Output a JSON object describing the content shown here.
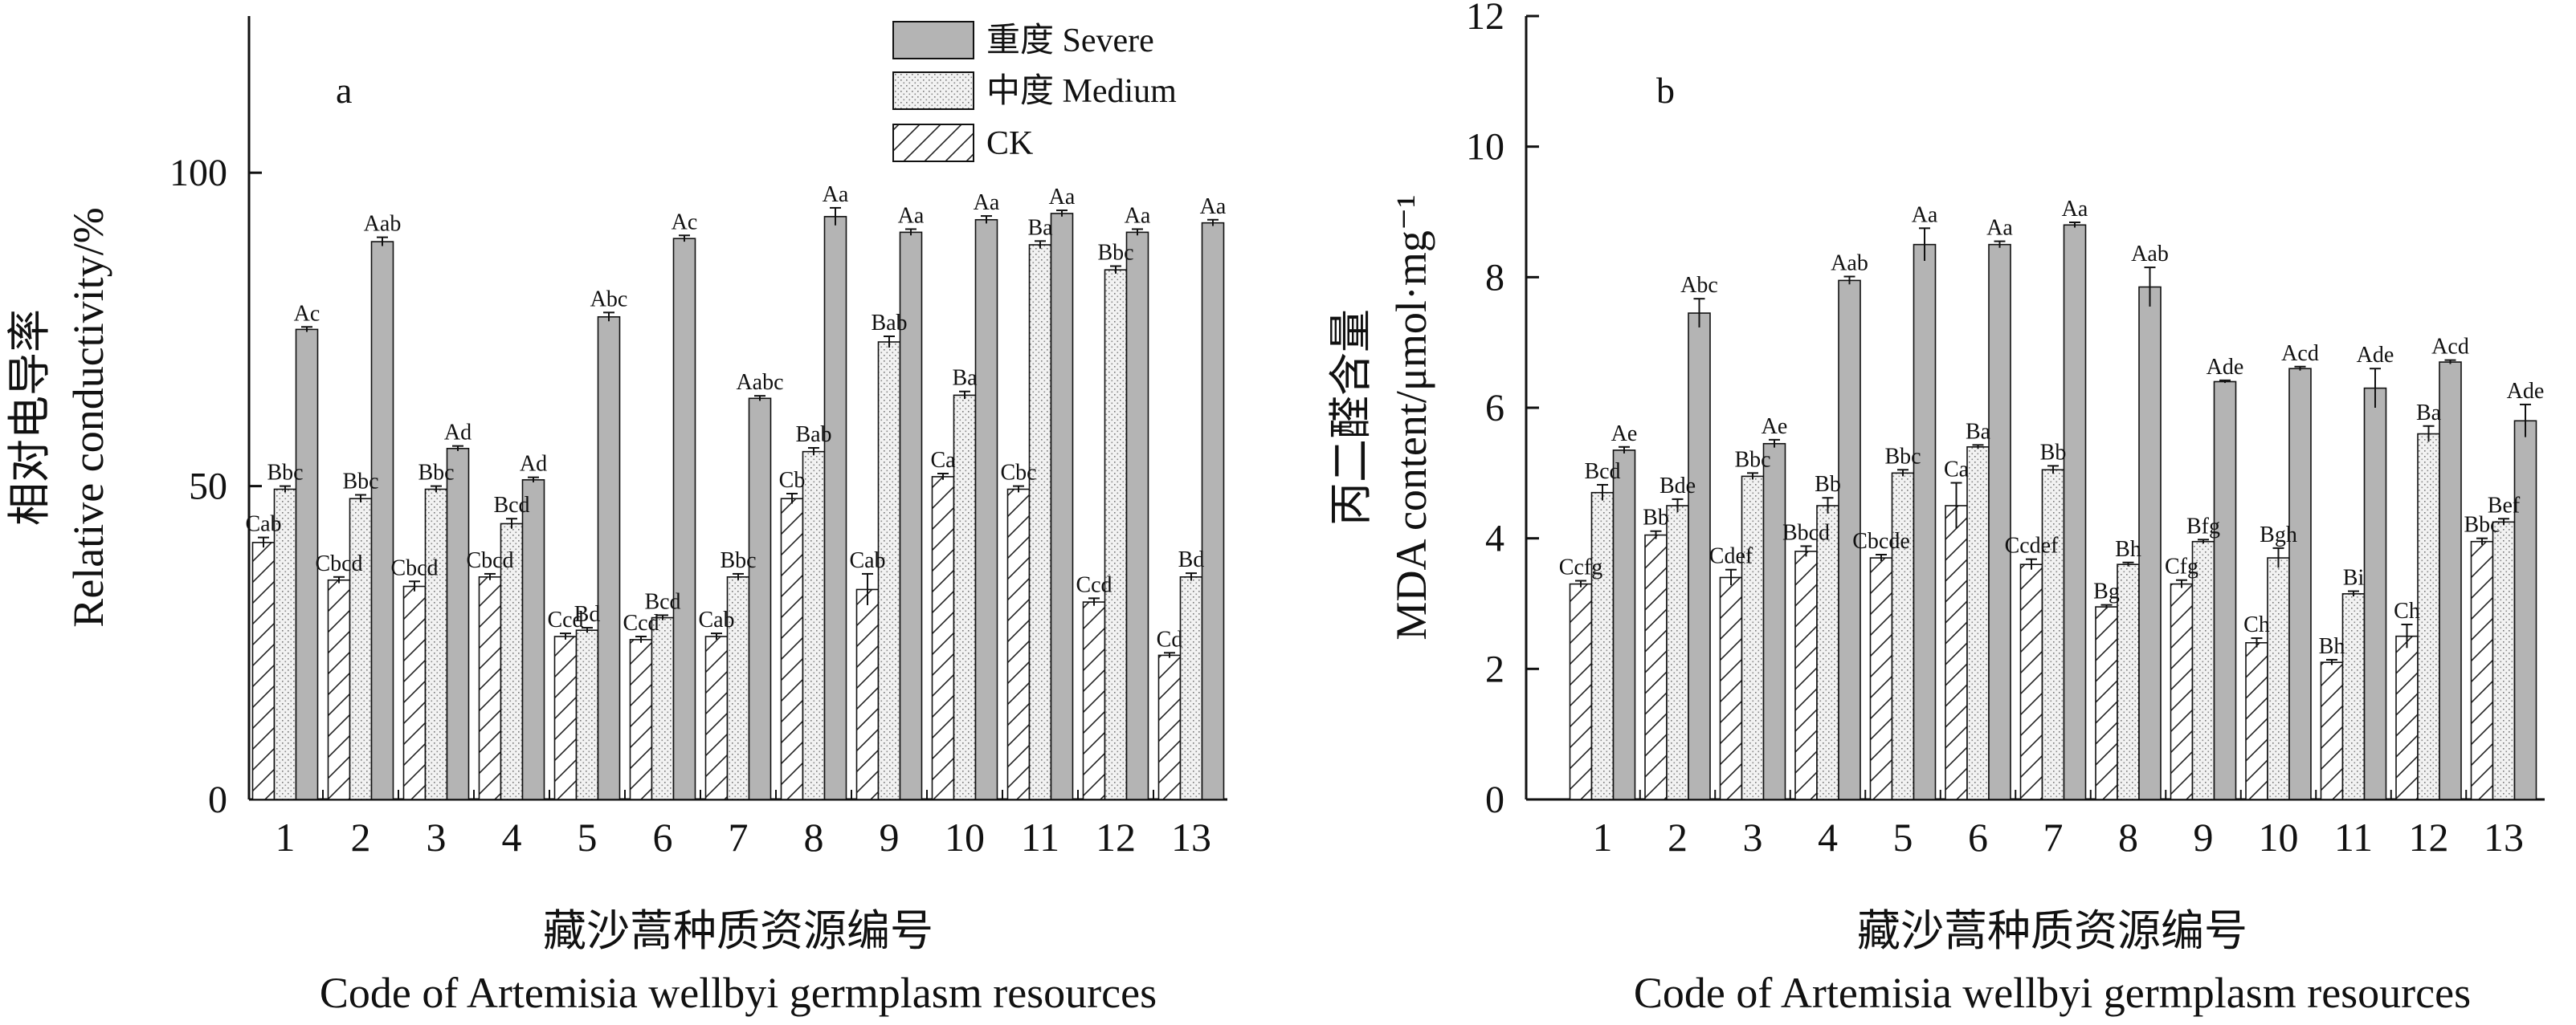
{
  "legend": [
    {
      "label": "重度 Severe",
      "pattern": "severe"
    },
    {
      "label": "中度 Medium",
      "pattern": "medium"
    },
    {
      "label": "CK",
      "pattern": "ck"
    }
  ],
  "colors": {
    "severe": "#b4b4b4",
    "medium": "#efefef",
    "ck": "#ffffff",
    "ink": "#111111"
  },
  "chart_data": [
    {
      "type": "bar",
      "panel_label": "a",
      "title": "",
      "ylabel_cn": "相对电导率",
      "ylabel_en": "Relative conductivity/%",
      "xlabel_cn": "藏沙蒿种质资源编号",
      "xlabel_en": "Code of Artemisia wellbyi germplasm resources",
      "categories": [
        "1",
        "2",
        "3",
        "4",
        "5",
        "6",
        "7",
        "8",
        "9",
        "10",
        "11",
        "12",
        "13"
      ],
      "ylim": [
        0,
        125
      ],
      "yticks": [
        0,
        50,
        100
      ],
      "series": [
        {
          "name": "CK",
          "pattern": "ck",
          "values": [
            41,
            35,
            34,
            35.5,
            26,
            25.5,
            26,
            48,
            33.5,
            51.5,
            49.5,
            31.5,
            23
          ],
          "errors": [
            0.8,
            0.5,
            0.8,
            0.5,
            0.5,
            0.5,
            0.5,
            0.8,
            2.5,
            0.5,
            0.5,
            0.6,
            0.4
          ],
          "labels": [
            "Cab",
            "Cbcd",
            "Cbcd",
            "Cbcd",
            "Ccd",
            "Ccd",
            "Cab",
            "Cb",
            "Cab",
            "Ca",
            "Cbc",
            "Ccd",
            "Cd"
          ]
        },
        {
          "name": "中度 Medium",
          "pattern": "medium",
          "values": [
            49.5,
            48,
            49.5,
            44,
            27,
            29,
            35.5,
            55.5,
            73,
            64.5,
            88.5,
            84.5,
            35.5
          ],
          "errors": [
            0.5,
            0.6,
            0.5,
            0.8,
            0.4,
            0.4,
            0.5,
            0.6,
            0.9,
            0.6,
            0.6,
            0.6,
            0.6
          ],
          "labels": [
            "Bbc",
            "Bbc",
            "Bbc",
            "Bcd",
            "Bd",
            "Bcd",
            "Bbc",
            "Bab",
            "Bab",
            "Ba",
            "Ba",
            "Bbc",
            "Bd"
          ]
        },
        {
          "name": "重度 Severe",
          "pattern": "severe",
          "values": [
            75,
            89,
            56,
            51,
            77,
            89.5,
            64,
            93,
            90.5,
            92.5,
            93.5,
            90.5,
            92
          ],
          "errors": [
            0.4,
            0.7,
            0.4,
            0.4,
            0.7,
            0.5,
            0.4,
            1.4,
            0.5,
            0.6,
            0.5,
            0.5,
            0.5
          ],
          "labels": [
            "Ac",
            "Aab",
            "Ad",
            "Ad",
            "Abc",
            "Ac",
            "Aabc",
            "Aa",
            "Aa",
            "Aa",
            "Aa",
            "Aa",
            "Aa"
          ]
        }
      ]
    },
    {
      "type": "bar",
      "panel_label": "b",
      "title": "",
      "ylabel_cn": "丙二醛含量",
      "ylabel_en": "MDA content/μmol·mg⁻¹",
      "xlabel_cn": "藏沙蒿种质资源编号",
      "xlabel_en": "Code of Artemisia wellbyi germplasm resources",
      "categories": [
        "1",
        "2",
        "3",
        "4",
        "5",
        "6",
        "7",
        "8",
        "9",
        "10",
        "11",
        "12",
        "13"
      ],
      "ylim": [
        0,
        12
      ],
      "yticks": [
        0,
        2,
        4,
        6,
        8,
        10,
        12
      ],
      "series": [
        {
          "name": "CK",
          "pattern": "ck",
          "values": [
            3.3,
            4.05,
            3.4,
            3.8,
            3.7,
            4.5,
            3.6,
            2.95,
            3.3,
            2.4,
            2.1,
            2.5,
            3.95
          ],
          "errors": [
            0.05,
            0.06,
            0.12,
            0.08,
            0.05,
            0.35,
            0.08,
            0.03,
            0.06,
            0.07,
            0.04,
            0.18,
            0.05
          ],
          "labels": [
            "Ccfg",
            "Bb",
            "Cdef",
            "Bbcd",
            "Cbcde",
            "Ca",
            "Ccdef",
            "Bg",
            "Cfg",
            "Ch",
            "Bh",
            "Ch",
            "Bbc"
          ]
        },
        {
          "name": "中度 Medium",
          "pattern": "medium",
          "values": [
            4.7,
            4.5,
            4.95,
            4.5,
            5.0,
            5.4,
            5.05,
            3.6,
            3.95,
            3.7,
            3.15,
            5.6,
            4.25
          ],
          "errors": [
            0.12,
            0.1,
            0.05,
            0.12,
            0.05,
            0.03,
            0.06,
            0.03,
            0.03,
            0.15,
            0.04,
            0.12,
            0.05
          ],
          "labels": [
            "Bcd",
            "Bde",
            "Bbc",
            "Bb",
            "Bbc",
            "Ba",
            "Bb",
            "Bh",
            "Bfg",
            "Bgh",
            "Bi",
            "Ba",
            "Bef"
          ]
        },
        {
          "name": "重度 Severe",
          "pattern": "severe",
          "values": [
            5.35,
            7.45,
            5.45,
            7.95,
            8.5,
            8.5,
            8.8,
            7.85,
            6.4,
            6.6,
            6.3,
            6.7,
            5.8
          ],
          "errors": [
            0.05,
            0.22,
            0.06,
            0.06,
            0.25,
            0.05,
            0.04,
            0.3,
            0.02,
            0.03,
            0.3,
            0.03,
            0.25
          ],
          "labels": [
            "Ae",
            "Abc",
            "Ae",
            "Aab",
            "Aa",
            "Aa",
            "Aa",
            "Aab",
            "Ade",
            "Acd",
            "Ade",
            "Acd",
            "Ade"
          ]
        }
      ]
    }
  ]
}
